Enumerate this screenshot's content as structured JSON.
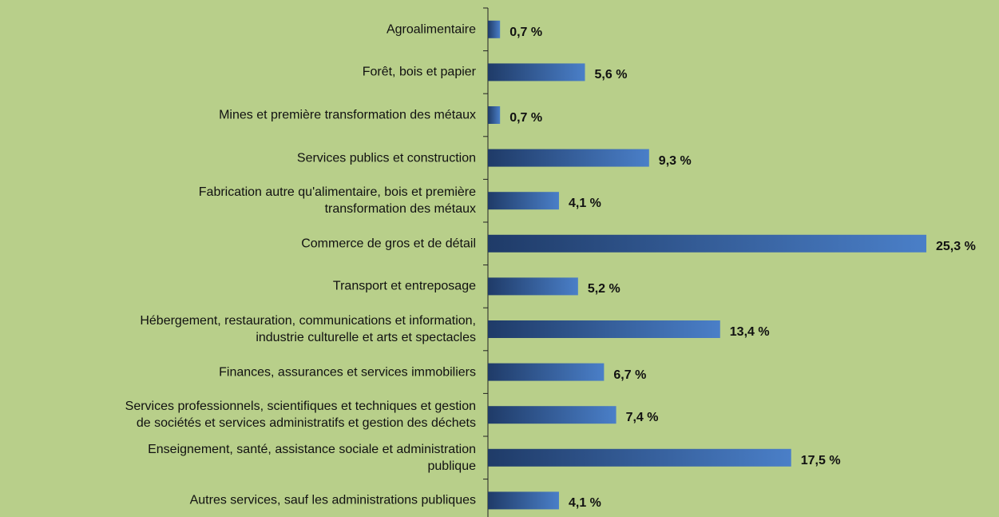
{
  "chart_data": {
    "type": "bar",
    "orientation": "horizontal",
    "categories": [
      "Agroalimentaire",
      "Forêt, bois et papier",
      "Mines et première transformation des métaux",
      "Services publics et construction",
      "Fabrication autre qu'alimentaire, bois et première\ntransformation des métaux",
      "Commerce de gros et de détail",
      "Transport et entreposage",
      "Hébergement, restauration, communications et information,\nindustrie culturelle et arts et spectacles",
      "Finances, assurances et services immobiliers",
      "Services professionnels, scientifiques et techniques et gestion\nde sociétés et services administratifs et gestion des déchets",
      "Enseignement, santé, assistance sociale et administration\npublique",
      "Autres services, sauf les administrations publiques"
    ],
    "values": [
      0.7,
      5.6,
      0.7,
      9.3,
      4.1,
      25.3,
      5.2,
      13.4,
      6.7,
      7.4,
      17.5,
      4.1
    ],
    "value_labels": [
      "0,7 %",
      "5,6 %",
      "0,7 %",
      "9,3 %",
      "4,1 %",
      "25,3 %",
      "5,2 %",
      "13,4 %",
      "6,7 %",
      "7,4 %",
      "17,5 %",
      "4,1 %"
    ],
    "color": "#4a7fc8"
  }
}
